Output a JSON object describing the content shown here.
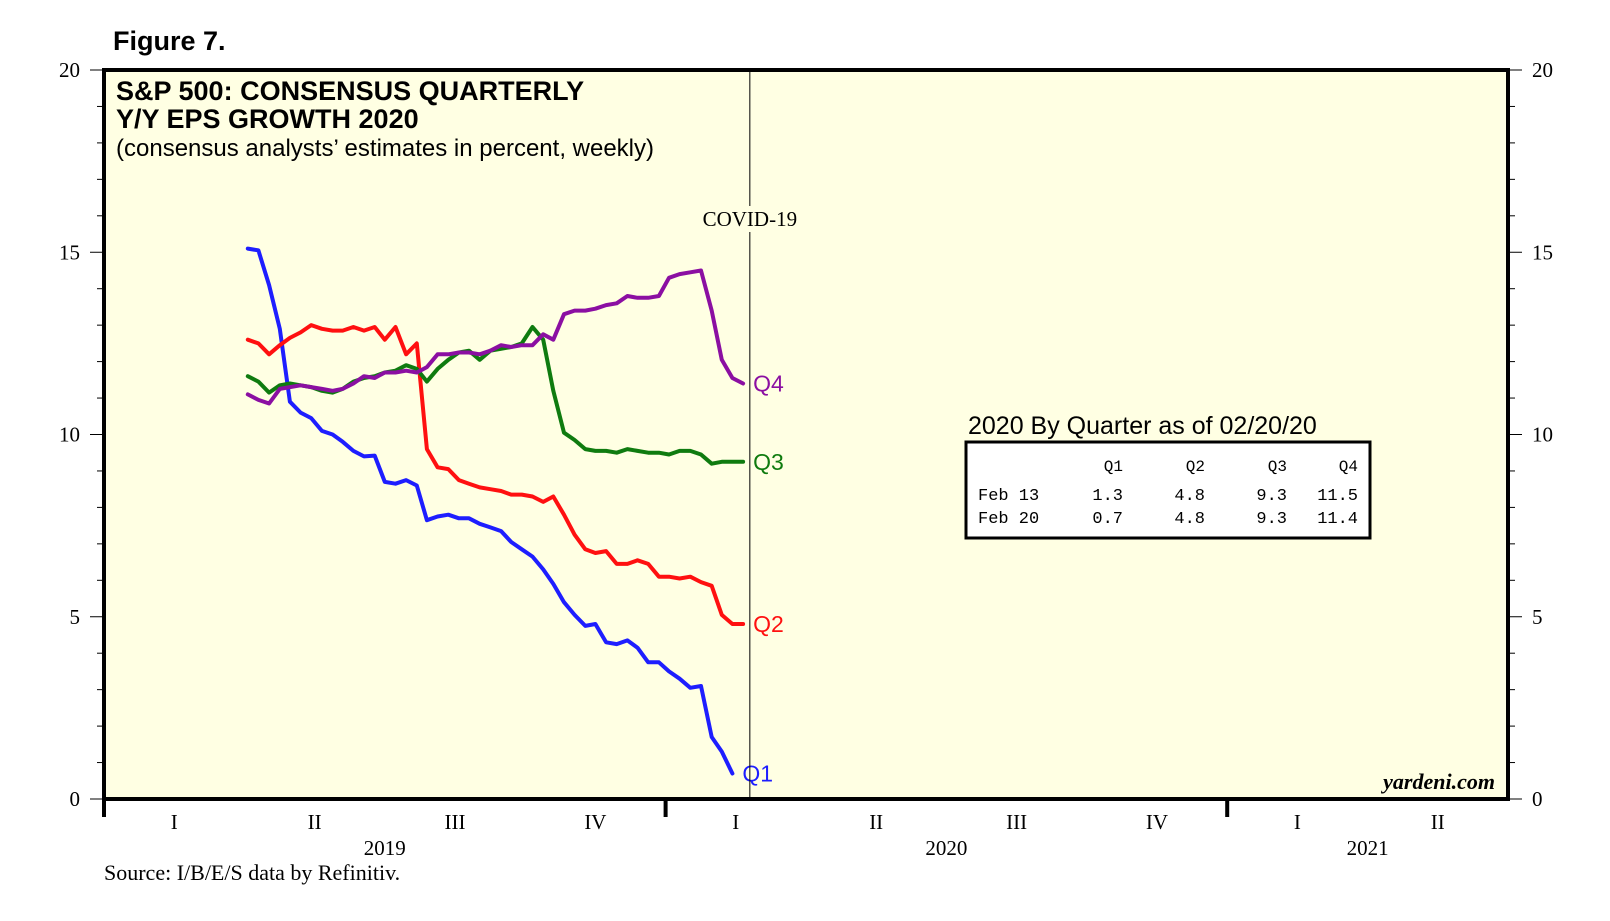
{
  "figure_label": "Figure 7.",
  "source": "Source: I/B/E/S data by Refinitiv.",
  "watermark": "yardeni.com",
  "colors": {
    "background": "#ffffe3",
    "q1": "#1e1eff",
    "q2": "#ff1010",
    "q3": "#0f7b0f",
    "q4": "#8b0fa2"
  },
  "chart_data": {
    "type": "line",
    "title_line1": "S&P 500: CONSENSUS QUARTERLY",
    "title_line2": "Y/Y EPS GROWTH 2020",
    "subtitle": "(consensus analysts’ estimates in percent, weekly)",
    "annotation": "COVID-19",
    "annotation_x": 2020.15,
    "x_range": [
      2019.0,
      2021.5
    ],
    "ylim": [
      0,
      20
    ],
    "y_ticks": [
      "0",
      "5",
      "10",
      "15",
      "20"
    ],
    "quarter_ticks": [
      {
        "label": "I",
        "x": 2019.125
      },
      {
        "label": "II",
        "x": 2019.375
      },
      {
        "label": "III",
        "x": 2019.625
      },
      {
        "label": "IV",
        "x": 2019.875
      },
      {
        "label": "I",
        "x": 2020.125
      },
      {
        "label": "II",
        "x": 2020.375
      },
      {
        "label": "III",
        "x": 2020.625
      },
      {
        "label": "IV",
        "x": 2020.875
      },
      {
        "label": "I",
        "x": 2021.125
      },
      {
        "label": "II",
        "x": 2021.375
      }
    ],
    "year_labels": [
      {
        "label": "2019",
        "x": 2019.5
      },
      {
        "label": "2020",
        "x": 2020.5
      },
      {
        "label": "2021",
        "x": 2021.25
      }
    ],
    "series": [
      {
        "name": "Q1",
        "label": "Q1",
        "color": "#1e1eff",
        "points": [
          [
            2019.256,
            15.1
          ],
          [
            2019.275,
            15.05
          ],
          [
            2019.294,
            14.1
          ],
          [
            2019.313,
            12.9
          ],
          [
            2019.331,
            10.9
          ],
          [
            2019.35,
            10.6
          ],
          [
            2019.369,
            10.45
          ],
          [
            2019.388,
            10.1
          ],
          [
            2019.407,
            10.0
          ],
          [
            2019.425,
            9.8
          ],
          [
            2019.444,
            9.55
          ],
          [
            2019.463,
            9.4
          ],
          [
            2019.482,
            9.42
          ],
          [
            2019.5,
            8.7
          ],
          [
            2019.519,
            8.65
          ],
          [
            2019.538,
            8.75
          ],
          [
            2019.557,
            8.6
          ],
          [
            2019.575,
            7.65
          ],
          [
            2019.594,
            7.75
          ],
          [
            2019.613,
            7.8
          ],
          [
            2019.632,
            7.7
          ],
          [
            2019.65,
            7.7
          ],
          [
            2019.669,
            7.55
          ],
          [
            2019.688,
            7.45
          ],
          [
            2019.707,
            7.35
          ],
          [
            2019.725,
            7.05
          ],
          [
            2019.744,
            6.85
          ],
          [
            2019.763,
            6.65
          ],
          [
            2019.782,
            6.3
          ],
          [
            2019.8,
            5.9
          ],
          [
            2019.819,
            5.4
          ],
          [
            2019.838,
            5.05
          ],
          [
            2019.857,
            4.75
          ],
          [
            2019.875,
            4.8
          ],
          [
            2019.894,
            4.3
          ],
          [
            2019.913,
            4.25
          ],
          [
            2019.932,
            4.35
          ],
          [
            2019.95,
            4.15
          ],
          [
            2019.969,
            3.75
          ],
          [
            2019.988,
            3.75
          ],
          [
            2020.006,
            3.5
          ],
          [
            2020.025,
            3.3
          ],
          [
            2020.044,
            3.05
          ],
          [
            2020.063,
            3.1
          ],
          [
            2020.082,
            1.7
          ],
          [
            2020.1,
            1.3
          ],
          [
            2020.119,
            0.7
          ]
        ]
      },
      {
        "name": "Q2",
        "label": "Q2",
        "color": "#ff1010",
        "points": [
          [
            2019.256,
            12.6
          ],
          [
            2019.275,
            12.5
          ],
          [
            2019.294,
            12.2
          ],
          [
            2019.313,
            12.45
          ],
          [
            2019.331,
            12.65
          ],
          [
            2019.35,
            12.8
          ],
          [
            2019.369,
            13.0
          ],
          [
            2019.388,
            12.9
          ],
          [
            2019.407,
            12.85
          ],
          [
            2019.425,
            12.85
          ],
          [
            2019.444,
            12.95
          ],
          [
            2019.463,
            12.85
          ],
          [
            2019.482,
            12.95
          ],
          [
            2019.5,
            12.6
          ],
          [
            2019.519,
            12.95
          ],
          [
            2019.538,
            12.2
          ],
          [
            2019.557,
            12.5
          ],
          [
            2019.575,
            9.6
          ],
          [
            2019.594,
            9.1
          ],
          [
            2019.613,
            9.05
          ],
          [
            2019.632,
            8.75
          ],
          [
            2019.65,
            8.65
          ],
          [
            2019.669,
            8.55
          ],
          [
            2019.688,
            8.5
          ],
          [
            2019.707,
            8.45
          ],
          [
            2019.725,
            8.35
          ],
          [
            2019.744,
            8.35
          ],
          [
            2019.763,
            8.3
          ],
          [
            2019.782,
            8.15
          ],
          [
            2019.8,
            8.3
          ],
          [
            2019.819,
            7.8
          ],
          [
            2019.838,
            7.25
          ],
          [
            2019.857,
            6.85
          ],
          [
            2019.875,
            6.75
          ],
          [
            2019.894,
            6.8
          ],
          [
            2019.913,
            6.45
          ],
          [
            2019.932,
            6.45
          ],
          [
            2019.95,
            6.55
          ],
          [
            2019.969,
            6.45
          ],
          [
            2019.988,
            6.1
          ],
          [
            2020.006,
            6.1
          ],
          [
            2020.025,
            6.05
          ],
          [
            2020.044,
            6.1
          ],
          [
            2020.063,
            5.95
          ],
          [
            2020.082,
            5.85
          ],
          [
            2020.1,
            5.05
          ],
          [
            2020.119,
            4.8
          ],
          [
            2020.138,
            4.8
          ]
        ]
      },
      {
        "name": "Q3",
        "label": "Q3",
        "color": "#0f7b0f",
        "points": [
          [
            2019.256,
            11.6
          ],
          [
            2019.275,
            11.45
          ],
          [
            2019.294,
            11.15
          ],
          [
            2019.313,
            11.35
          ],
          [
            2019.331,
            11.4
          ],
          [
            2019.35,
            11.35
          ],
          [
            2019.369,
            11.3
          ],
          [
            2019.388,
            11.2
          ],
          [
            2019.407,
            11.15
          ],
          [
            2019.425,
            11.25
          ],
          [
            2019.444,
            11.45
          ],
          [
            2019.463,
            11.55
          ],
          [
            2019.482,
            11.6
          ],
          [
            2019.5,
            11.7
          ],
          [
            2019.519,
            11.75
          ],
          [
            2019.538,
            11.9
          ],
          [
            2019.557,
            11.8
          ],
          [
            2019.575,
            11.45
          ],
          [
            2019.594,
            11.8
          ],
          [
            2019.613,
            12.05
          ],
          [
            2019.632,
            12.25
          ],
          [
            2019.65,
            12.3
          ],
          [
            2019.669,
            12.05
          ],
          [
            2019.688,
            12.3
          ],
          [
            2019.707,
            12.35
          ],
          [
            2019.725,
            12.4
          ],
          [
            2019.744,
            12.5
          ],
          [
            2019.763,
            12.95
          ],
          [
            2019.782,
            12.6
          ],
          [
            2019.8,
            11.2
          ],
          [
            2019.819,
            10.05
          ],
          [
            2019.838,
            9.85
          ],
          [
            2019.857,
            9.6
          ],
          [
            2019.875,
            9.55
          ],
          [
            2019.894,
            9.55
          ],
          [
            2019.913,
            9.5
          ],
          [
            2019.932,
            9.6
          ],
          [
            2019.95,
            9.55
          ],
          [
            2019.969,
            9.5
          ],
          [
            2019.988,
            9.5
          ],
          [
            2020.006,
            9.45
          ],
          [
            2020.025,
            9.55
          ],
          [
            2020.044,
            9.55
          ],
          [
            2020.063,
            9.45
          ],
          [
            2020.082,
            9.2
          ],
          [
            2020.1,
            9.25
          ],
          [
            2020.119,
            9.25
          ],
          [
            2020.138,
            9.25
          ]
        ]
      },
      {
        "name": "Q4",
        "label": "Q4",
        "color": "#8b0fa2",
        "points": [
          [
            2019.256,
            11.1
          ],
          [
            2019.275,
            10.95
          ],
          [
            2019.294,
            10.85
          ],
          [
            2019.313,
            11.25
          ],
          [
            2019.331,
            11.3
          ],
          [
            2019.35,
            11.35
          ],
          [
            2019.369,
            11.3
          ],
          [
            2019.388,
            11.25
          ],
          [
            2019.407,
            11.2
          ],
          [
            2019.425,
            11.25
          ],
          [
            2019.444,
            11.4
          ],
          [
            2019.463,
            11.6
          ],
          [
            2019.482,
            11.55
          ],
          [
            2019.5,
            11.7
          ],
          [
            2019.519,
            11.7
          ],
          [
            2019.538,
            11.75
          ],
          [
            2019.557,
            11.7
          ],
          [
            2019.575,
            11.85
          ],
          [
            2019.594,
            12.2
          ],
          [
            2019.613,
            12.2
          ],
          [
            2019.632,
            12.25
          ],
          [
            2019.65,
            12.25
          ],
          [
            2019.669,
            12.2
          ],
          [
            2019.688,
            12.3
          ],
          [
            2019.707,
            12.45
          ],
          [
            2019.725,
            12.4
          ],
          [
            2019.744,
            12.45
          ],
          [
            2019.763,
            12.45
          ],
          [
            2019.782,
            12.75
          ],
          [
            2019.8,
            12.6
          ],
          [
            2019.819,
            13.3
          ],
          [
            2019.838,
            13.4
          ],
          [
            2019.857,
            13.4
          ],
          [
            2019.875,
            13.45
          ],
          [
            2019.894,
            13.55
          ],
          [
            2019.913,
            13.6
          ],
          [
            2019.932,
            13.8
          ],
          [
            2019.95,
            13.75
          ],
          [
            2019.969,
            13.75
          ],
          [
            2019.988,
            13.8
          ],
          [
            2020.006,
            14.3
          ],
          [
            2020.025,
            14.4
          ],
          [
            2020.044,
            14.45
          ],
          [
            2020.063,
            14.5
          ],
          [
            2020.082,
            13.4
          ],
          [
            2020.1,
            12.05
          ],
          [
            2020.119,
            11.55
          ],
          [
            2020.138,
            11.4
          ]
        ]
      }
    ],
    "table": {
      "title": "2020 By Quarter as of 02/20/20",
      "columns": [
        "",
        "Q1",
        "Q2",
        "Q3",
        "Q4"
      ],
      "rows": [
        [
          "Feb 13",
          "1.3",
          "4.8",
          "9.3",
          "11.5"
        ],
        [
          "Feb 20",
          "0.7",
          "4.8",
          "9.3",
          "11.4"
        ]
      ]
    }
  }
}
